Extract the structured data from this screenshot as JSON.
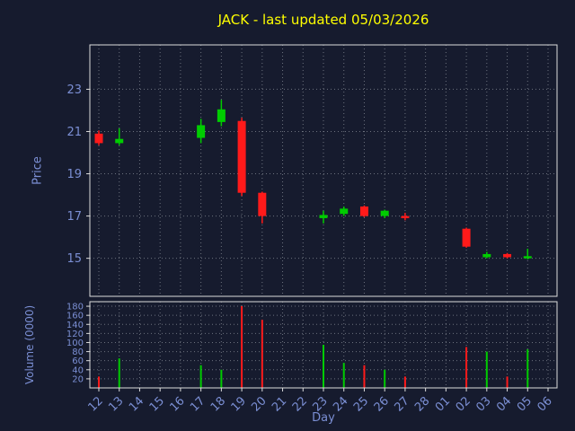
{
  "chart_data": {
    "type": "candlestick",
    "title": "JACK - last updated 05/03/2026",
    "xlabel": "Day",
    "ylabel_price": "Price",
    "ylabel_volume": "Volume (0000)",
    "grid": true,
    "x_labels": [
      "12",
      "13",
      "14",
      "15",
      "16",
      "17",
      "18",
      "19",
      "20",
      "21",
      "22",
      "23",
      "24",
      "25",
      "26",
      "27",
      "28",
      "01",
      "02",
      "03",
      "04",
      "05",
      "06"
    ],
    "price_ticks": [
      15,
      17,
      19,
      21,
      23
    ],
    "price_ylim": [
      13.2,
      25.1
    ],
    "volume_ticks": [
      20,
      40,
      60,
      80,
      100,
      120,
      140,
      160,
      180
    ],
    "volume_ylim": [
      0,
      190
    ],
    "candles": [
      {
        "day": "12",
        "open": 20.9,
        "high": 21.05,
        "low": 20.35,
        "close": 20.45,
        "volume": 25
      },
      {
        "day": "13",
        "open": 20.45,
        "high": 21.15,
        "low": 20.35,
        "close": 20.65,
        "volume": 65
      },
      {
        "day": "17",
        "open": 20.7,
        "high": 21.6,
        "low": 20.45,
        "close": 21.3,
        "volume": 50
      },
      {
        "day": "18",
        "open": 21.45,
        "high": 22.5,
        "low": 21.25,
        "close": 22.05,
        "volume": 40
      },
      {
        "day": "19",
        "open": 21.5,
        "high": 21.65,
        "low": 17.95,
        "close": 18.1,
        "volume": 180
      },
      {
        "day": "20",
        "open": 18.1,
        "high": 18.15,
        "low": 16.65,
        "close": 17.0,
        "volume": 150
      },
      {
        "day": "23",
        "open": 16.9,
        "high": 17.25,
        "low": 16.65,
        "close": 17.05,
        "volume": 95
      },
      {
        "day": "24",
        "open": 17.1,
        "high": 17.45,
        "low": 17.0,
        "close": 17.35,
        "volume": 55
      },
      {
        "day": "25",
        "open": 17.45,
        "high": 17.5,
        "low": 16.95,
        "close": 17.0,
        "volume": 50
      },
      {
        "day": "26",
        "open": 17.0,
        "high": 17.3,
        "low": 16.9,
        "close": 17.25,
        "volume": 40
      },
      {
        "day": "27",
        "open": 17.0,
        "high": 17.15,
        "low": 16.8,
        "close": 16.9,
        "volume": 25
      },
      {
        "day": "02",
        "open": 16.4,
        "high": 16.45,
        "low": 15.5,
        "close": 15.55,
        "volume": 90
      },
      {
        "day": "03",
        "open": 15.05,
        "high": 15.3,
        "low": 15.0,
        "close": 15.2,
        "volume": 80
      },
      {
        "day": "04",
        "open": 15.2,
        "high": 15.25,
        "low": 15.0,
        "close": 15.05,
        "volume": 25
      },
      {
        "day": "05",
        "open": 15.0,
        "high": 15.45,
        "low": 14.95,
        "close": 15.1,
        "volume": 85
      }
    ],
    "colors": {
      "background": "#161b2e",
      "title": "#ffff00",
      "axis_text": "#7b8fd4",
      "up": "#00cc00",
      "down": "#ff1a1a",
      "grid": "#9aa0a8",
      "spine": "#dcdcdc"
    }
  }
}
